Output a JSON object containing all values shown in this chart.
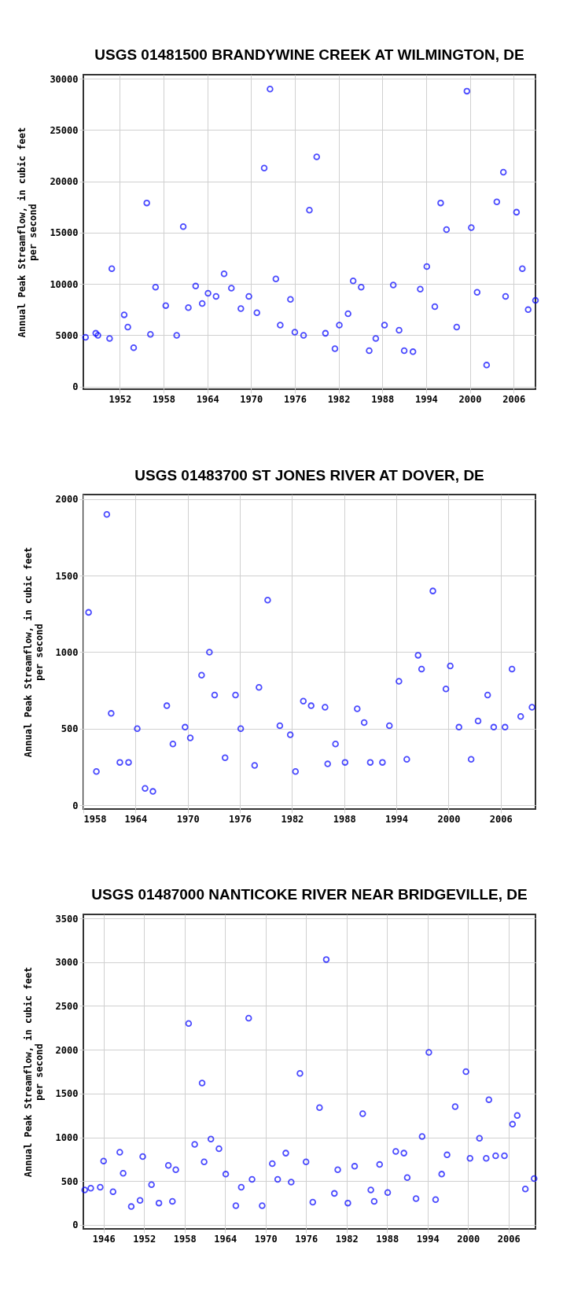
{
  "chart_data": [
    {
      "type": "scatter",
      "title": "USGS 01481500 BRANDYWINE CREEK AT WILMINGTON, DE",
      "ylabel": "Annual Peak Streamflow, in cubic feet\nper second",
      "marker": "circle",
      "grid": true,
      "xlim": [
        1947,
        2009
      ],
      "xticks": [
        1952,
        1958,
        1964,
        1970,
        1976,
        1982,
        1988,
        1994,
        2000,
        2006
      ],
      "ylim": [
        -250,
        30400
      ],
      "yticks": [
        0,
        5000,
        10000,
        15000,
        20000,
        25000,
        30000
      ],
      "series": [
        {
          "color": "#0000ff",
          "x": [
            1947.3,
            1948.7,
            1949.0,
            1950.6,
            1950.9,
            1952.6,
            1953.1,
            1953.9,
            1955.7,
            1956.2,
            1956.9,
            1958.3,
            1959.8,
            1960.7,
            1961.4,
            1962.4,
            1963.3,
            1964.1,
            1965.2,
            1966.3,
            1967.3,
            1968.6,
            1969.7,
            1970.8,
            1971.8,
            1972.6,
            1973.4,
            1974.0,
            1975.4,
            1976.0,
            1977.2,
            1978.0,
            1979.0,
            1980.2,
            1981.5,
            1982.1,
            1983.3,
            1984.0,
            1985.1,
            1986.2,
            1987.1,
            1988.3,
            1989.5,
            1990.3,
            1991.0,
            1992.2,
            1993.2,
            1994.1,
            1995.2,
            1996.0,
            1996.8,
            1998.2,
            1999.6,
            2000.2,
            2001.0,
            2002.3,
            2003.7,
            2004.6,
            2004.9,
            2006.4,
            2007.2,
            2008.0,
            2009.0
          ],
          "values": [
            4800,
            5200,
            5000,
            4700,
            11500,
            7000,
            5800,
            3800,
            17900,
            5100,
            9700,
            7900,
            5000,
            15600,
            7700,
            9800,
            8100,
            9100,
            8800,
            11000,
            9600,
            7600,
            8800,
            7200,
            21300,
            29000,
            10500,
            6000,
            8500,
            5300,
            5000,
            17200,
            22400,
            5200,
            3700,
            6000,
            7100,
            10300,
            9700,
            3500,
            4700,
            6000,
            9900,
            5500,
            3500,
            3400,
            9500,
            11700,
            7800,
            17900,
            15300,
            5800,
            28800,
            15500,
            9200,
            2100,
            18000,
            20900,
            8800,
            17000,
            11500,
            7500,
            8400
          ]
        }
      ]
    },
    {
      "type": "scatter",
      "title": "USGS 01483700 ST JONES RIVER AT DOVER, DE",
      "ylabel": "Annual Peak Streamflow, in cubic feet\nper second",
      "marker": "circle",
      "grid": true,
      "xlim": [
        1958,
        2010
      ],
      "xticks": [
        1958,
        1964,
        1970,
        1976,
        1982,
        1988,
        1994,
        2000,
        2006
      ],
      "ylim": [
        -25,
        2030
      ],
      "yticks": [
        0,
        500,
        1000,
        1500,
        2000
      ],
      "series": [
        {
          "color": "#0000ff",
          "x": [
            1958.6,
            1959.5,
            1960.7,
            1961.2,
            1962.2,
            1963.2,
            1964.2,
            1965.1,
            1966.0,
            1967.6,
            1968.3,
            1969.7,
            1970.3,
            1971.6,
            1972.5,
            1973.1,
            1974.3,
            1975.5,
            1976.1,
            1977.7,
            1978.2,
            1979.2,
            1980.6,
            1981.8,
            1982.4,
            1983.3,
            1984.2,
            1985.8,
            1986.1,
            1987.0,
            1988.1,
            1989.5,
            1990.3,
            1991.0,
            1992.4,
            1993.2,
            1994.3,
            1995.2,
            1996.5,
            1996.9,
            1998.2,
            1999.7,
            2000.2,
            2001.2,
            2002.6,
            2003.4,
            2004.5,
            2005.2,
            2006.5,
            2007.3,
            2008.3,
            2009.6
          ],
          "values": [
            1260,
            220,
            1900,
            600,
            280,
            280,
            500,
            110,
            90,
            650,
            400,
            510,
            440,
            850,
            1000,
            720,
            310,
            720,
            500,
            260,
            770,
            1340,
            520,
            460,
            220,
            680,
            650,
            640,
            270,
            400,
            280,
            630,
            540,
            280,
            280,
            520,
            810,
            300,
            980,
            890,
            1400,
            760,
            910,
            510,
            300,
            550,
            720,
            510,
            510,
            890,
            580,
            640
          ]
        }
      ]
    },
    {
      "type": "scatter",
      "title": "USGS 01487000 NANTICOKE RIVER NEAR BRIDGEVILLE, DE",
      "ylabel": "Annual Peak Streamflow, in cubic feet\nper second",
      "marker": "circle",
      "grid": true,
      "xlim": [
        1943,
        2010
      ],
      "xticks": [
        1946,
        1952,
        1958,
        1964,
        1970,
        1976,
        1982,
        1988,
        1994,
        2000,
        2006
      ],
      "ylim": [
        -45,
        3545
      ],
      "yticks": [
        0,
        500,
        1000,
        1500,
        2000,
        2500,
        3000,
        3500
      ],
      "series": [
        {
          "color": "#0000ff",
          "x": [
            1943.2,
            1944.1,
            1945.5,
            1946.0,
            1947.4,
            1948.4,
            1948.9,
            1950.1,
            1951.4,
            1951.8,
            1953.1,
            1954.2,
            1955.6,
            1956.2,
            1956.7,
            1958.6,
            1959.5,
            1960.6,
            1960.9,
            1961.9,
            1963.1,
            1964.1,
            1965.6,
            1966.4,
            1967.5,
            1968.0,
            1969.5,
            1971.0,
            1971.8,
            1973.0,
            1973.8,
            1975.1,
            1976.0,
            1977.0,
            1978.0,
            1979.0,
            1980.2,
            1980.7,
            1982.2,
            1983.2,
            1984.4,
            1985.6,
            1986.1,
            1986.9,
            1988.1,
            1989.3,
            1990.5,
            1991.0,
            1992.3,
            1993.2,
            1994.2,
            1995.2,
            1996.1,
            1996.9,
            1998.1,
            1999.7,
            2000.3,
            2001.7,
            2002.7,
            2003.1,
            2004.1,
            2005.4,
            2006.6,
            2007.3,
            2008.5,
            2009.8
          ],
          "values": [
            400,
            420,
            430,
            730,
            380,
            830,
            590,
            210,
            280,
            780,
            460,
            250,
            680,
            270,
            630,
            2300,
            920,
            1620,
            720,
            980,
            870,
            580,
            220,
            430,
            2360,
            520,
            220,
            700,
            520,
            820,
            490,
            1730,
            720,
            260,
            1340,
            3030,
            360,
            630,
            250,
            670,
            1270,
            400,
            270,
            690,
            370,
            840,
            820,
            540,
            300,
            1010,
            1970,
            290,
            580,
            800,
            1350,
            1750,
            760,
            990,
            760,
            1430,
            790,
            790,
            1150,
            1250,
            410,
            530
          ]
        }
      ]
    }
  ]
}
